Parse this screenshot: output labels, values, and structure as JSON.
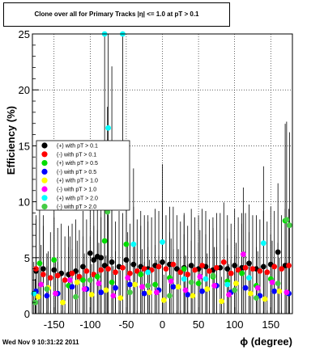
{
  "title": "Clone  over all for Primary Tracks  |η| <= 1.0 at pT > 0.1",
  "footer": "Wed Nov  9 10:31:22 2011",
  "chart_data": {
    "type": "scatter",
    "title": "Clone  over all for Primary Tracks  |η| <= 1.0 at pT > 0.1",
    "xlabel": "ϕ (degree)",
    "ylabel": "Efficiency (%)",
    "xlim": [
      -180,
      180
    ],
    "ylim": [
      0,
      25
    ],
    "xticks": [
      -150,
      -100,
      -50,
      0,
      50,
      100,
      150
    ],
    "yticks": [
      0,
      5,
      10,
      15,
      20,
      25
    ],
    "grid": true,
    "legend_position": "middle-left",
    "series": [
      {
        "name": "(+) with pT > 0.1",
        "color": "#000000",
        "x": [
          -175,
          -165,
          -150,
          -140,
          -130,
          -120,
          -110,
          -100,
          -95,
          -90,
          -85,
          -80,
          -70,
          -60,
          -50,
          -40,
          -30,
          -20,
          -10,
          0,
          10,
          20,
          30,
          40,
          50,
          60,
          70,
          80,
          90,
          100,
          110,
          120,
          130,
          140,
          150,
          160,
          170
        ],
        "y": [
          3.8,
          4.0,
          3.9,
          3.6,
          3.5,
          3.8,
          4.2,
          5.4,
          4.8,
          5.1,
          5.0,
          4.3,
          4.6,
          4.2,
          4.8,
          4.4,
          4.2,
          4.0,
          4.3,
          4.6,
          4.4,
          4.0,
          4.1,
          4.3,
          4.0,
          4.2,
          3.9,
          4.1,
          4.0,
          4.3,
          4.1,
          4.5,
          4.0,
          4.2,
          4.4,
          5.5,
          4.3
        ]
      },
      {
        "name": "(-) with pT > 0.1",
        "color": "#ff0000",
        "x": [
          -175,
          -165,
          -155,
          -145,
          -135,
          -125,
          -115,
          -105,
          -95,
          -85,
          -75,
          -65,
          -55,
          -45,
          -35,
          -25,
          -15,
          -5,
          5,
          15,
          25,
          35,
          45,
          55,
          65,
          75,
          85,
          95,
          105,
          115,
          125,
          135,
          145,
          155,
          165,
          175
        ],
        "y": [
          4.0,
          3.5,
          3.2,
          3.4,
          3.0,
          3.6,
          3.3,
          3.8,
          3.5,
          3.9,
          4.0,
          3.7,
          4.1,
          3.6,
          3.8,
          4.0,
          3.9,
          4.2,
          4.0,
          4.4,
          3.7,
          3.5,
          3.9,
          4.3,
          3.8,
          4.1,
          4.6,
          3.6,
          3.9,
          4.1,
          4.0,
          3.8,
          3.7,
          4.2,
          4.0,
          4.3
        ]
      },
      {
        "name": "(+) with pT > 0.5",
        "color": "#00dd00",
        "x": [
          -170,
          -150,
          -130,
          -110,
          -90,
          -80,
          -70,
          -50,
          -30,
          -10,
          10,
          30,
          50,
          70,
          90,
          110,
          130,
          150,
          170
        ],
        "y": [
          4.5,
          4.8,
          2.5,
          3.0,
          3.3,
          6.5,
          2.8,
          6.2,
          3.5,
          2.6,
          3.2,
          4.0,
          2.7,
          3.3,
          2.9,
          3.6,
          2.5,
          3.1,
          8.3
        ]
      },
      {
        "name": "(-) with pT > 0.5",
        "color": "#0000ff",
        "x": [
          -175,
          -160,
          -145,
          -125,
          -105,
          -85,
          -65,
          -45,
          -25,
          -5,
          15,
          35,
          55,
          75,
          95,
          115,
          135,
          155,
          175
        ],
        "y": [
          2.0,
          1.6,
          1.8,
          2.4,
          2.2,
          1.9,
          2.3,
          2.6,
          1.8,
          2.1,
          2.4,
          1.7,
          2.0,
          2.5,
          1.9,
          2.3,
          1.6,
          2.0,
          1.8
        ]
      },
      {
        "name": "(+) with pT > 1.0",
        "color": "#ffff00",
        "x": [
          -172,
          -158,
          -138,
          -118,
          -98,
          -78,
          -58,
          -38,
          -18,
          2,
          22,
          42,
          62,
          82,
          102,
          122,
          142,
          162
        ],
        "y": [
          1.5,
          2.3,
          1.0,
          2.8,
          1.7,
          2.1,
          1.4,
          2.6,
          1.9,
          1.2,
          2.4,
          1.6,
          2.2,
          1.1,
          2.7,
          1.8,
          1.3,
          2.0
        ]
      },
      {
        "name": "(-) with pT > 1.0",
        "color": "#ff00ff",
        "x": [
          -168,
          -148,
          -128,
          -108,
          -88,
          -68,
          -48,
          -28,
          -8,
          12,
          32,
          52,
          72,
          92,
          112,
          132,
          152,
          172
        ],
        "y": [
          2.6,
          1.8,
          3.0,
          2.2,
          2.7,
          1.6,
          3.2,
          2.4,
          1.9,
          2.9,
          2.1,
          3.3,
          2.5,
          1.7,
          5.3,
          2.3,
          2.8,
          1.9
        ]
      },
      {
        "name": "(+) with pT > 2.0",
        "color": "#00ffff",
        "x": [
          -178,
          -80,
          -75,
          -55,
          -40,
          -20,
          0,
          30,
          60,
          90,
          120,
          140
        ],
        "y": [
          1.8,
          25.0,
          16.6,
          25.0,
          6.2,
          3.7,
          6.4,
          3.1,
          3.1,
          2.6,
          3.2,
          6.3
        ]
      },
      {
        "name": "(-) with pT > 2.0",
        "color": "#44cc44",
        "x": [
          -176,
          -160,
          -120,
          -100,
          -76,
          -70,
          -45,
          -20,
          10,
          40,
          70,
          100,
          130,
          160,
          172,
          176
        ],
        "y": [
          1.0,
          2.2,
          1.5,
          3.0,
          9.1,
          11.0,
          1.9,
          2.5,
          1.6,
          2.8,
          3.4,
          2.1,
          1.4,
          2.7,
          8.4,
          7.9
        ]
      }
    ]
  }
}
